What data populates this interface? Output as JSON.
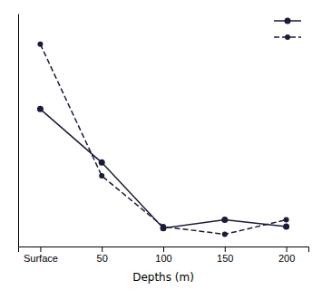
{
  "chart_data": {
    "type": "line",
    "x": [
      0,
      50,
      100,
      150,
      200
    ],
    "series": [
      {
        "color": "#1a1a3a",
        "line_style": "solid",
        "marker": "circle",
        "values": [
          3.5,
          2.1,
          0.38,
          0.6,
          0.42
        ]
      },
      {
        "color": "#1a1a3a",
        "line_style": "dashed",
        "marker": "circle",
        "values": [
          5.2,
          1.75,
          0.42,
          0.22,
          0.6
        ]
      }
    ],
    "xlabel": "Depths (m)",
    "xlim": [
      -18,
      218
    ],
    "xticks": [
      {
        "value": 0,
        "label": "Surface"
      },
      50,
      100,
      150,
      200
    ],
    "ylim": [
      -0.1,
      6.0
    ],
    "tick_labels": "x",
    "legend": "upper right"
  }
}
